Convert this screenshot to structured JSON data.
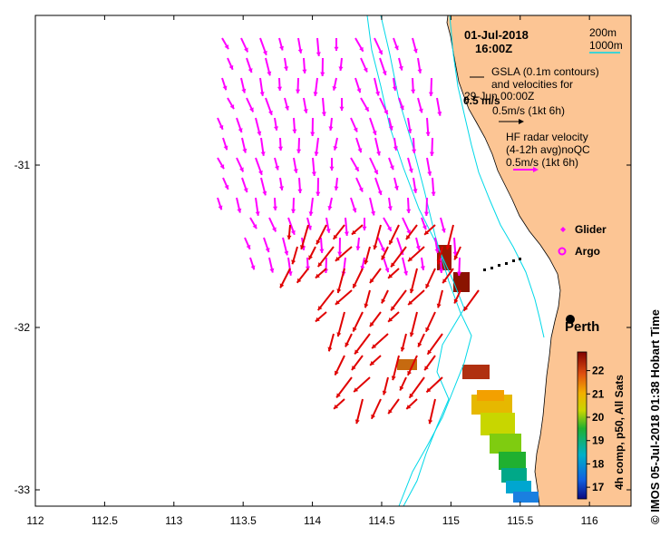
{
  "title": {
    "date": "01-Jul-2018",
    "time": "16:00Z"
  },
  "depth_legend": {
    "line1": "200m",
    "line2": "1000m"
  },
  "gsla_legend": {
    "line1": "GSLA (0.1m contours)",
    "line2": "and velocities for",
    "line3": "29-Jun 00:00Z",
    "speed": "0.5m/s (1kt 6h)",
    "scale_label": "0.5 m/s"
  },
  "hf_legend": {
    "line1": "HF radar velocity",
    "line2": "(4-12h avg)noQC",
    "speed": "0.5m/s (1kt 6h)"
  },
  "markers": {
    "glider": "Glider",
    "argo": "Argo"
  },
  "city": {
    "name": "Perth"
  },
  "axes": {
    "x_ticks": [
      "112",
      "112.5",
      "113",
      "113.5",
      "114",
      "114.5",
      "115",
      "115.5",
      "116"
    ],
    "y_ticks": [
      "-31",
      "-32",
      "-33"
    ]
  },
  "colorbar": {
    "label": "4h comp, p50, All Sats",
    "ticks": [
      "22",
      "21",
      "20",
      "19",
      "18",
      "17"
    ],
    "range": [
      16.5,
      22.8
    ]
  },
  "credit": "© IMOS 05-Jul-2018 01:38 Hobart Time",
  "colors": {
    "land": "#FCC594",
    "hf_arrow": "#FF00FF",
    "gsla_arrow": "#E00000",
    "isobath": "#00D8E8"
  }
}
